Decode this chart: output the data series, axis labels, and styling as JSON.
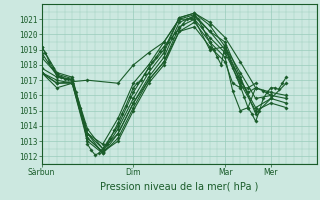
{
  "title": "",
  "xlabel": "Pression niveau de la mer( hPa )",
  "ylabel": "",
  "bg_color": "#cce8e0",
  "grid_color": "#99ccbb",
  "line_color": "#1a5c2a",
  "ylim": [
    1011.5,
    1022.0
  ],
  "xlim": [
    0,
    144
  ],
  "xtick_labels": [
    "Sàrbun",
    "Dim",
    "Mar",
    "Mer"
  ],
  "xtick_positions": [
    0,
    48,
    96,
    120
  ],
  "ytick_labels": [
    "1012",
    "1013",
    "1014",
    "1015",
    "1016",
    "1017",
    "1018",
    "1019",
    "1020",
    "1021"
  ],
  "ytick_values": [
    1012,
    1013,
    1014,
    1015,
    1016,
    1017,
    1018,
    1019,
    1020,
    1021
  ],
  "series": [
    {
      "x": [
        0,
        2,
        4,
        6,
        8,
        10,
        12,
        14,
        16,
        18,
        20,
        22,
        24,
        26,
        28,
        30,
        32,
        34,
        36,
        38,
        40,
        42,
        44,
        46,
        48,
        50,
        52,
        54,
        56,
        58,
        60,
        62,
        64,
        66,
        68,
        70,
        72,
        74,
        76,
        78,
        80,
        82,
        84,
        86,
        88,
        90,
        92,
        94,
        96,
        98,
        100,
        102,
        104,
        106,
        108,
        110,
        112,
        114,
        116,
        118,
        120,
        122,
        124,
        126,
        128
      ],
      "y": [
        1019.2,
        1018.8,
        1018.2,
        1017.8,
        1017.4,
        1017.2,
        1017.1,
        1017.1,
        1017.0,
        1016.2,
        1015.2,
        1014.2,
        1012.8,
        1012.4,
        1012.1,
        1012.2,
        1012.5,
        1012.8,
        1013.2,
        1013.7,
        1014.2,
        1014.8,
        1015.3,
        1015.9,
        1016.5,
        1016.8,
        1017.0,
        1017.4,
        1017.8,
        1018.2,
        1018.5,
        1018.9,
        1019.2,
        1019.5,
        1019.8,
        1020.1,
        1020.4,
        1020.7,
        1021.0,
        1021.1,
        1021.2,
        1021.0,
        1020.5,
        1020.0,
        1019.5,
        1019.0,
        1018.5,
        1018.0,
        1019.3,
        1018.5,
        1017.8,
        1017.2,
        1016.6,
        1015.9,
        1015.2,
        1014.8,
        1014.3,
        1015.0,
        1015.8,
        1016.2,
        1016.5,
        1016.5,
        1016.4,
        1016.8,
        1017.2
      ]
    },
    {
      "x": [
        0,
        8,
        16,
        24,
        32,
        40,
        48,
        56,
        64,
        72,
        80,
        88,
        96,
        104,
        112,
        120,
        128
      ],
      "y": [
        1019.2,
        1017.5,
        1017.2,
        1013.5,
        1012.8,
        1014.5,
        1016.8,
        1018.0,
        1019.5,
        1021.0,
        1021.3,
        1020.2,
        1019.5,
        1017.2,
        1014.8,
        1015.8,
        1016.8
      ]
    },
    {
      "x": [
        0,
        8,
        16,
        24,
        32,
        40,
        48,
        56,
        64,
        72,
        80,
        88,
        96,
        104,
        112,
        120,
        128
      ],
      "y": [
        1018.8,
        1017.3,
        1017.0,
        1013.8,
        1012.5,
        1014.0,
        1016.2,
        1017.8,
        1019.0,
        1021.1,
        1021.4,
        1020.8,
        1019.8,
        1018.2,
        1016.5,
        1016.2,
        1016.0
      ]
    },
    {
      "x": [
        0,
        8,
        16,
        24,
        32,
        40,
        48,
        56,
        64,
        72,
        80,
        88,
        96,
        104,
        112,
        120,
        128
      ],
      "y": [
        1018.5,
        1017.4,
        1017.1,
        1013.2,
        1012.3,
        1013.8,
        1015.8,
        1017.5,
        1018.8,
        1021.1,
        1021.4,
        1020.6,
        1019.2,
        1017.5,
        1015.8,
        1016.0,
        1015.8
      ]
    },
    {
      "x": [
        0,
        8,
        16,
        24,
        32,
        40,
        48,
        56,
        64,
        72,
        80,
        88,
        96,
        104,
        112,
        120,
        128
      ],
      "y": [
        1017.8,
        1017.2,
        1017.0,
        1013.5,
        1012.2,
        1013.5,
        1015.5,
        1017.2,
        1018.5,
        1020.8,
        1021.2,
        1020.2,
        1019.0,
        1017.0,
        1015.2,
        1015.8,
        1015.5
      ]
    },
    {
      "x": [
        0,
        8,
        16,
        24,
        32,
        40,
        48,
        56,
        64,
        72,
        80,
        88,
        96,
        104,
        112,
        120,
        128
      ],
      "y": [
        1017.5,
        1017.0,
        1016.8,
        1013.0,
        1012.2,
        1013.2,
        1015.2,
        1017.0,
        1018.2,
        1020.5,
        1021.0,
        1019.8,
        1018.8,
        1016.8,
        1015.0,
        1015.5,
        1015.2
      ]
    },
    {
      "x": [
        0,
        8,
        16,
        24,
        32,
        40,
        48,
        56,
        64,
        72,
        80,
        88,
        96,
        100,
        104,
        108,
        112,
        116,
        120
      ],
      "y": [
        1017.5,
        1016.8,
        1016.8,
        1013.2,
        1012.3,
        1013.0,
        1015.0,
        1016.8,
        1018.0,
        1020.2,
        1020.8,
        1019.5,
        1018.5,
        1016.3,
        1015.0,
        1015.2,
        1016.5,
        1016.3,
        1016.0
      ]
    },
    {
      "x": [
        0,
        8,
        16,
        24,
        32,
        40,
        48,
        56,
        64,
        72,
        80,
        88,
        96,
        100,
        104,
        108,
        112
      ],
      "y": [
        1017.5,
        1016.5,
        1016.8,
        1013.5,
        1012.5,
        1013.5,
        1015.5,
        1017.0,
        1018.2,
        1020.2,
        1020.5,
        1019.2,
        1018.2,
        1016.8,
        1016.5,
        1016.5,
        1016.8
      ]
    },
    {
      "x": [
        0,
        8,
        24,
        40,
        48,
        56,
        64,
        72,
        80,
        88,
        96,
        104,
        108,
        112
      ],
      "y": [
        1017.5,
        1016.8,
        1017.0,
        1016.8,
        1018.0,
        1018.8,
        1019.5,
        1021.0,
        1021.0,
        1019.0,
        1019.2,
        1017.0,
        1016.2,
        1016.5
      ]
    }
  ],
  "marker_size": 1.8,
  "line_width": 0.8,
  "font_size_tick": 5.5,
  "font_size_label": 7.0
}
